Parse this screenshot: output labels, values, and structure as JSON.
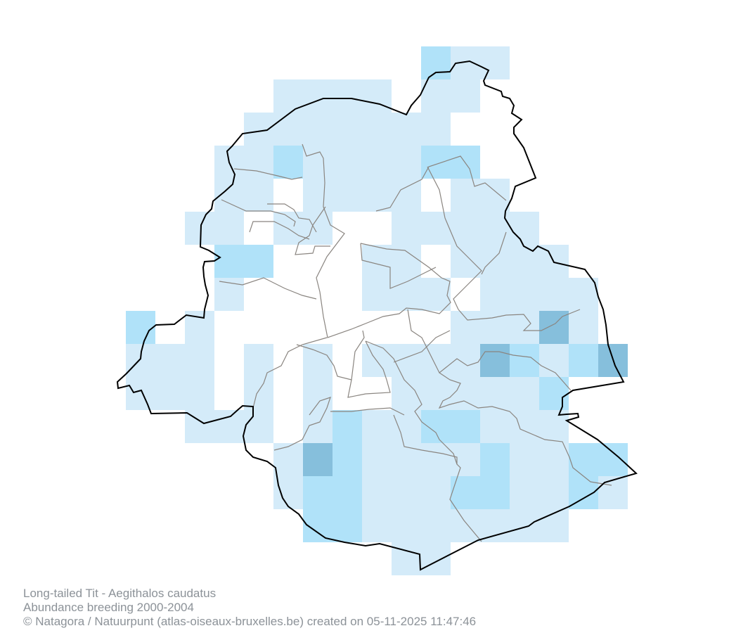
{
  "caption": {
    "species": "Long-tailed Tit - Aegithalos caudatus",
    "dataset": "Abundance breeding 2000-2004",
    "credit": "© Natagora / Natuurpunt (atlas-oiseaux-bruxelles.be) created on 05-11-2025 11:47:46"
  },
  "colors": {
    "level_1": "#d4ebf9",
    "level_2": "#b0e2f9",
    "level_3": "#86bfdc",
    "region_border": "#000000",
    "commune_border": "#8a8580"
  },
  "abundance_grid": [
    "00000000002110000",
    "00000111101100000",
    "00001111111000000",
    "00011211112200000",
    "00011011110110000",
    "00110110011111000",
    "00022000110111100",
    "00010000111011110",
    "20100000000111310",
    "11101010111132123",
    "11101010011111200",
    "00111012112211100",
    "00000132111121122",
    "00000122111221121",
    "00000022111111100",
    "00000000011000000"
  ]
}
